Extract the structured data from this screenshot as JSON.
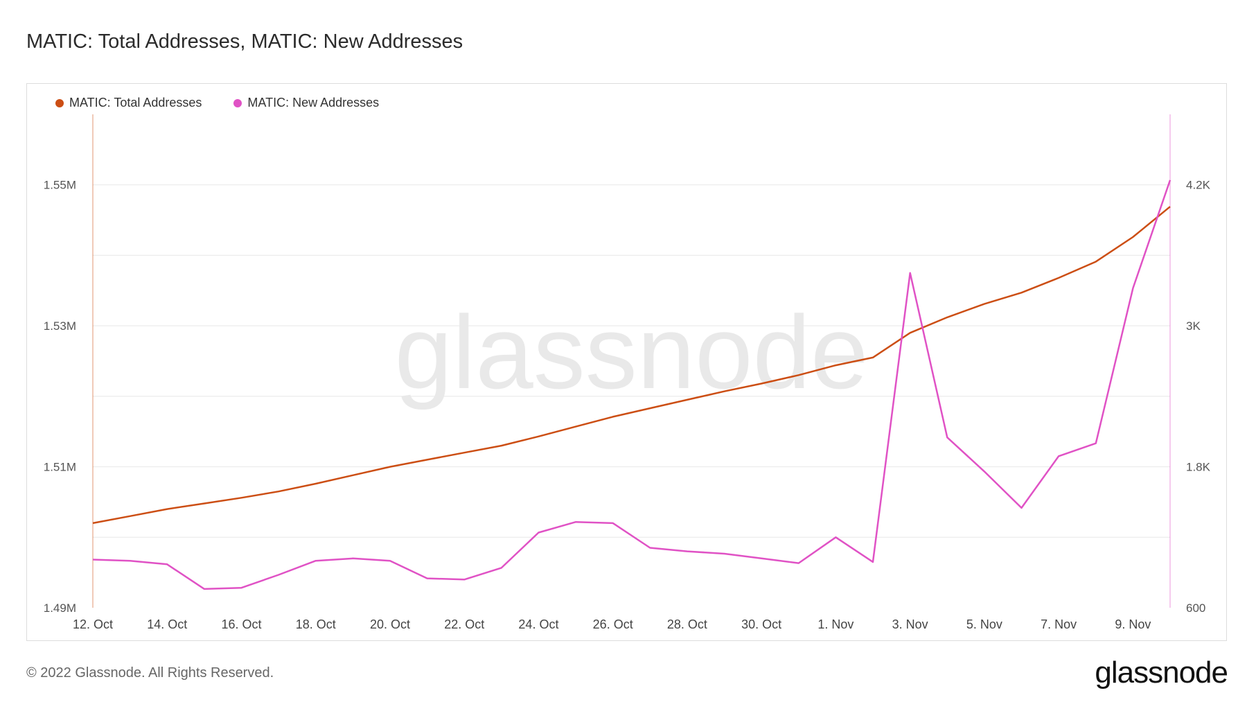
{
  "title": "MATIC: Total Addresses, MATIC: New Addresses",
  "footer": {
    "copyright": "© 2022 Glassnode. All Rights Reserved.",
    "logo": "glassnode"
  },
  "watermark": "glassnode",
  "colors": {
    "total": "#cc4e14",
    "new": "#e052c5",
    "grid": "#e8e8e8"
  },
  "chart_data": {
    "type": "line",
    "x_tick_labels": [
      "12. Oct",
      "14. Oct",
      "16. Oct",
      "18. Oct",
      "20. Oct",
      "22. Oct",
      "24. Oct",
      "26. Oct",
      "28. Oct",
      "30. Oct",
      "1. Nov",
      "3. Nov",
      "5. Nov",
      "7. Nov",
      "9. Nov"
    ],
    "x": [
      "12. Oct",
      "13. Oct",
      "14. Oct",
      "15. Oct",
      "16. Oct",
      "17. Oct",
      "18. Oct",
      "19. Oct",
      "20. Oct",
      "21. Oct",
      "22. Oct",
      "23. Oct",
      "24. Oct",
      "25. Oct",
      "26. Oct",
      "27. Oct",
      "28. Oct",
      "29. Oct",
      "30. Oct",
      "31. Oct",
      "1. Nov",
      "2. Nov",
      "3. Nov",
      "4. Nov",
      "5. Nov",
      "6. Nov",
      "7. Nov",
      "8. Nov",
      "9. Nov",
      "10. Nov"
    ],
    "left_axis": {
      "ticks": [
        1490000,
        1510000,
        1530000,
        1550000
      ],
      "tick_labels": [
        "1.49M",
        "1.51M",
        "1.53M",
        "1.55M"
      ],
      "range": [
        1490000,
        1560000
      ]
    },
    "right_axis": {
      "ticks": [
        600,
        1800,
        3000,
        4200
      ],
      "tick_labels": [
        "600",
        "1.8K",
        "3K",
        "4.2K"
      ],
      "range": [
        600,
        4800
      ]
    },
    "legend_position": "top-left",
    "grid": true,
    "series": [
      {
        "name": "MATIC: Total Addresses",
        "axis": "left",
        "color": "#cc4e14",
        "values": [
          1502000,
          1503000,
          1504000,
          1504800,
          1505600,
          1506500,
          1507600,
          1508800,
          1510000,
          1511000,
          1512000,
          1513000,
          1514300,
          1515700,
          1517100,
          1518300,
          1519500,
          1520700,
          1521800,
          1523000,
          1524400,
          1525500,
          1529000,
          1531200,
          1533100,
          1534700,
          1536800,
          1539100,
          1542600,
          1546900
        ]
      },
      {
        "name": "MATIC: New Addresses",
        "axis": "left",
        "axis_note": "",
        "color": "#e052c5",
        "values": [
          1010,
          1000,
          970,
          760,
          770,
          880,
          1000,
          1020,
          1000,
          850,
          840,
          940,
          1240,
          1330,
          1320,
          1110,
          1080,
          1060,
          1020,
          980,
          1200,
          990,
          3450,
          2050,
          1760,
          1450,
          1890,
          2000,
          3320,
          4240
        ]
      }
    ]
  }
}
